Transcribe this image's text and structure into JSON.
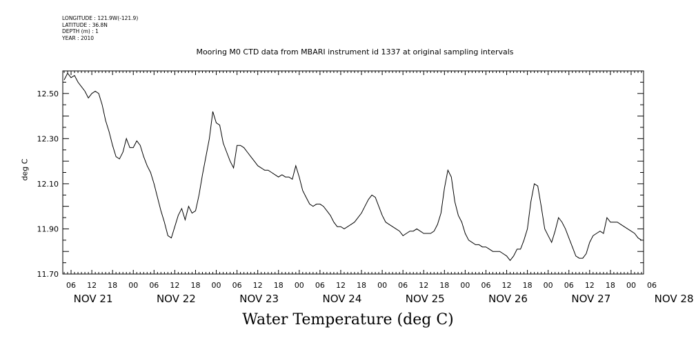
{
  "meta": {
    "longitude": "LONGITUDE : 121.9W(-121.9)",
    "latitude": "LATITUDE : 36.8N",
    "depth": "DEPTH (m) : 1",
    "year": "YEAR : 2010"
  },
  "chart_data": {
    "type": "line",
    "title": "Mooring M0 CTD data from MBARI instrument id 1337 at original sampling intervals",
    "xlabel": "Water Temperature (deg C)",
    "ylabel": "deg C",
    "ylim": [
      11.7,
      12.6
    ],
    "xlim_hours": [
      3.6,
      171.6
    ],
    "y_ticks": [
      "11.70",
      "11.90",
      "12.10",
      "12.30",
      "12.50"
    ],
    "x_hour_labels": [
      "06",
      "12",
      "18",
      "00",
      "06",
      "12",
      "18",
      "00",
      "06",
      "12",
      "18",
      "00",
      "06",
      "12",
      "18",
      "00",
      "06",
      "12",
      "18",
      "00",
      "06",
      "12",
      "18",
      "00",
      "06",
      "12",
      "18",
      "00",
      "06"
    ],
    "day_labels": [
      "NOV 21",
      "NOV 22",
      "NOV 23",
      "NOV 24",
      "NOV 25",
      "NOV 26",
      "NOV 27",
      "NOV 28"
    ],
    "series": [
      {
        "name": "",
        "color": "#000000",
        "points": [
          [
            4,
            12.56
          ],
          [
            5,
            12.59
          ],
          [
            6,
            12.57
          ],
          [
            7,
            12.58
          ],
          [
            8,
            12.55
          ],
          [
            9,
            12.53
          ],
          [
            10,
            12.51
          ],
          [
            11,
            12.48
          ],
          [
            12,
            12.5
          ],
          [
            13,
            12.51
          ],
          [
            14,
            12.5
          ],
          [
            15,
            12.45
          ],
          [
            16,
            12.38
          ],
          [
            17,
            12.33
          ],
          [
            18,
            12.27
          ],
          [
            19,
            12.22
          ],
          [
            20,
            12.21
          ],
          [
            21,
            12.24
          ],
          [
            22,
            12.3
          ],
          [
            23,
            12.26
          ],
          [
            24,
            12.26
          ],
          [
            25,
            12.29
          ],
          [
            26,
            12.27
          ],
          [
            27,
            12.22
          ],
          [
            28,
            12.18
          ],
          [
            29,
            12.15
          ],
          [
            30,
            12.1
          ],
          [
            31,
            12.04
          ],
          [
            32,
            11.98
          ],
          [
            33,
            11.93
          ],
          [
            34,
            11.87
          ],
          [
            35,
            11.86
          ],
          [
            36,
            11.91
          ],
          [
            37,
            11.96
          ],
          [
            38,
            11.99
          ],
          [
            39,
            11.94
          ],
          [
            40,
            12.0
          ],
          [
            41,
            11.97
          ],
          [
            42,
            11.98
          ],
          [
            43,
            12.05
          ],
          [
            44,
            12.14
          ],
          [
            45,
            12.22
          ],
          [
            46,
            12.3
          ],
          [
            47,
            12.42
          ],
          [
            48,
            12.37
          ],
          [
            49,
            12.36
          ],
          [
            50,
            12.28
          ],
          [
            51,
            12.24
          ],
          [
            52,
            12.2
          ],
          [
            53,
            12.17
          ],
          [
            54,
            12.27
          ],
          [
            55,
            12.27
          ],
          [
            56,
            12.26
          ],
          [
            57,
            12.24
          ],
          [
            58,
            12.22
          ],
          [
            59,
            12.2
          ],
          [
            60,
            12.18
          ],
          [
            61,
            12.17
          ],
          [
            62,
            12.16
          ],
          [
            63,
            12.16
          ],
          [
            64,
            12.15
          ],
          [
            65,
            12.14
          ],
          [
            66,
            12.13
          ],
          [
            67,
            12.14
          ],
          [
            68,
            12.13
          ],
          [
            69,
            12.13
          ],
          [
            70,
            12.12
          ],
          [
            71,
            12.18
          ],
          [
            72,
            12.13
          ],
          [
            73,
            12.07
          ],
          [
            74,
            12.04
          ],
          [
            75,
            12.01
          ],
          [
            76,
            12.0
          ],
          [
            77,
            12.01
          ],
          [
            78,
            12.01
          ],
          [
            79,
            12.0
          ],
          [
            80,
            11.98
          ],
          [
            81,
            11.96
          ],
          [
            82,
            11.93
          ],
          [
            83,
            11.91
          ],
          [
            84,
            11.91
          ],
          [
            85,
            11.9
          ],
          [
            86,
            11.91
          ],
          [
            87,
            11.92
          ],
          [
            88,
            11.93
          ],
          [
            89,
            11.95
          ],
          [
            90,
            11.97
          ],
          [
            91,
            12.0
          ],
          [
            92,
            12.03
          ],
          [
            93,
            12.05
          ],
          [
            94,
            12.04
          ],
          [
            95,
            12.0
          ],
          [
            96,
            11.96
          ],
          [
            97,
            11.93
          ],
          [
            98,
            11.92
          ],
          [
            99,
            11.91
          ],
          [
            100,
            11.9
          ],
          [
            101,
            11.89
          ],
          [
            102,
            11.87
          ],
          [
            103,
            11.88
          ],
          [
            104,
            11.89
          ],
          [
            105,
            11.89
          ],
          [
            106,
            11.9
          ],
          [
            107,
            11.89
          ],
          [
            108,
            11.88
          ],
          [
            109,
            11.88
          ],
          [
            110,
            11.88
          ],
          [
            111,
            11.89
          ],
          [
            112,
            11.92
          ],
          [
            113,
            11.97
          ],
          [
            114,
            12.08
          ],
          [
            115,
            12.16
          ],
          [
            116,
            12.13
          ],
          [
            117,
            12.02
          ],
          [
            118,
            11.96
          ],
          [
            119,
            11.93
          ],
          [
            120,
            11.88
          ],
          [
            121,
            11.85
          ],
          [
            122,
            11.84
          ],
          [
            123,
            11.83
          ],
          [
            124,
            11.83
          ],
          [
            125,
            11.82
          ],
          [
            126,
            11.82
          ],
          [
            127,
            11.81
          ],
          [
            128,
            11.8
          ],
          [
            129,
            11.8
          ],
          [
            130,
            11.8
          ],
          [
            131,
            11.79
          ],
          [
            132,
            11.78
          ],
          [
            133,
            11.76
          ],
          [
            134,
            11.78
          ],
          [
            135,
            11.81
          ],
          [
            136,
            11.81
          ],
          [
            137,
            11.85
          ],
          [
            138,
            11.9
          ],
          [
            139,
            12.02
          ],
          [
            140,
            12.1
          ],
          [
            141,
            12.09
          ],
          [
            142,
            12.0
          ],
          [
            143,
            11.9
          ],
          [
            144,
            11.87
          ],
          [
            145,
            11.84
          ],
          [
            146,
            11.89
          ],
          [
            147,
            11.95
          ],
          [
            148,
            11.93
          ],
          [
            149,
            11.9
          ],
          [
            150,
            11.86
          ],
          [
            151,
            11.82
          ],
          [
            152,
            11.78
          ],
          [
            153,
            11.77
          ],
          [
            154,
            11.77
          ],
          [
            155,
            11.79
          ],
          [
            156,
            11.84
          ],
          [
            157,
            11.87
          ],
          [
            158,
            11.88
          ],
          [
            159,
            11.89
          ],
          [
            160,
            11.88
          ],
          [
            161,
            11.95
          ],
          [
            162,
            11.93
          ],
          [
            163,
            11.93
          ],
          [
            164,
            11.93
          ],
          [
            165,
            11.92
          ],
          [
            166,
            11.91
          ],
          [
            167,
            11.9
          ],
          [
            168,
            11.89
          ],
          [
            169,
            11.88
          ],
          [
            170,
            11.86
          ],
          [
            171,
            11.85
          ]
        ]
      }
    ]
  }
}
